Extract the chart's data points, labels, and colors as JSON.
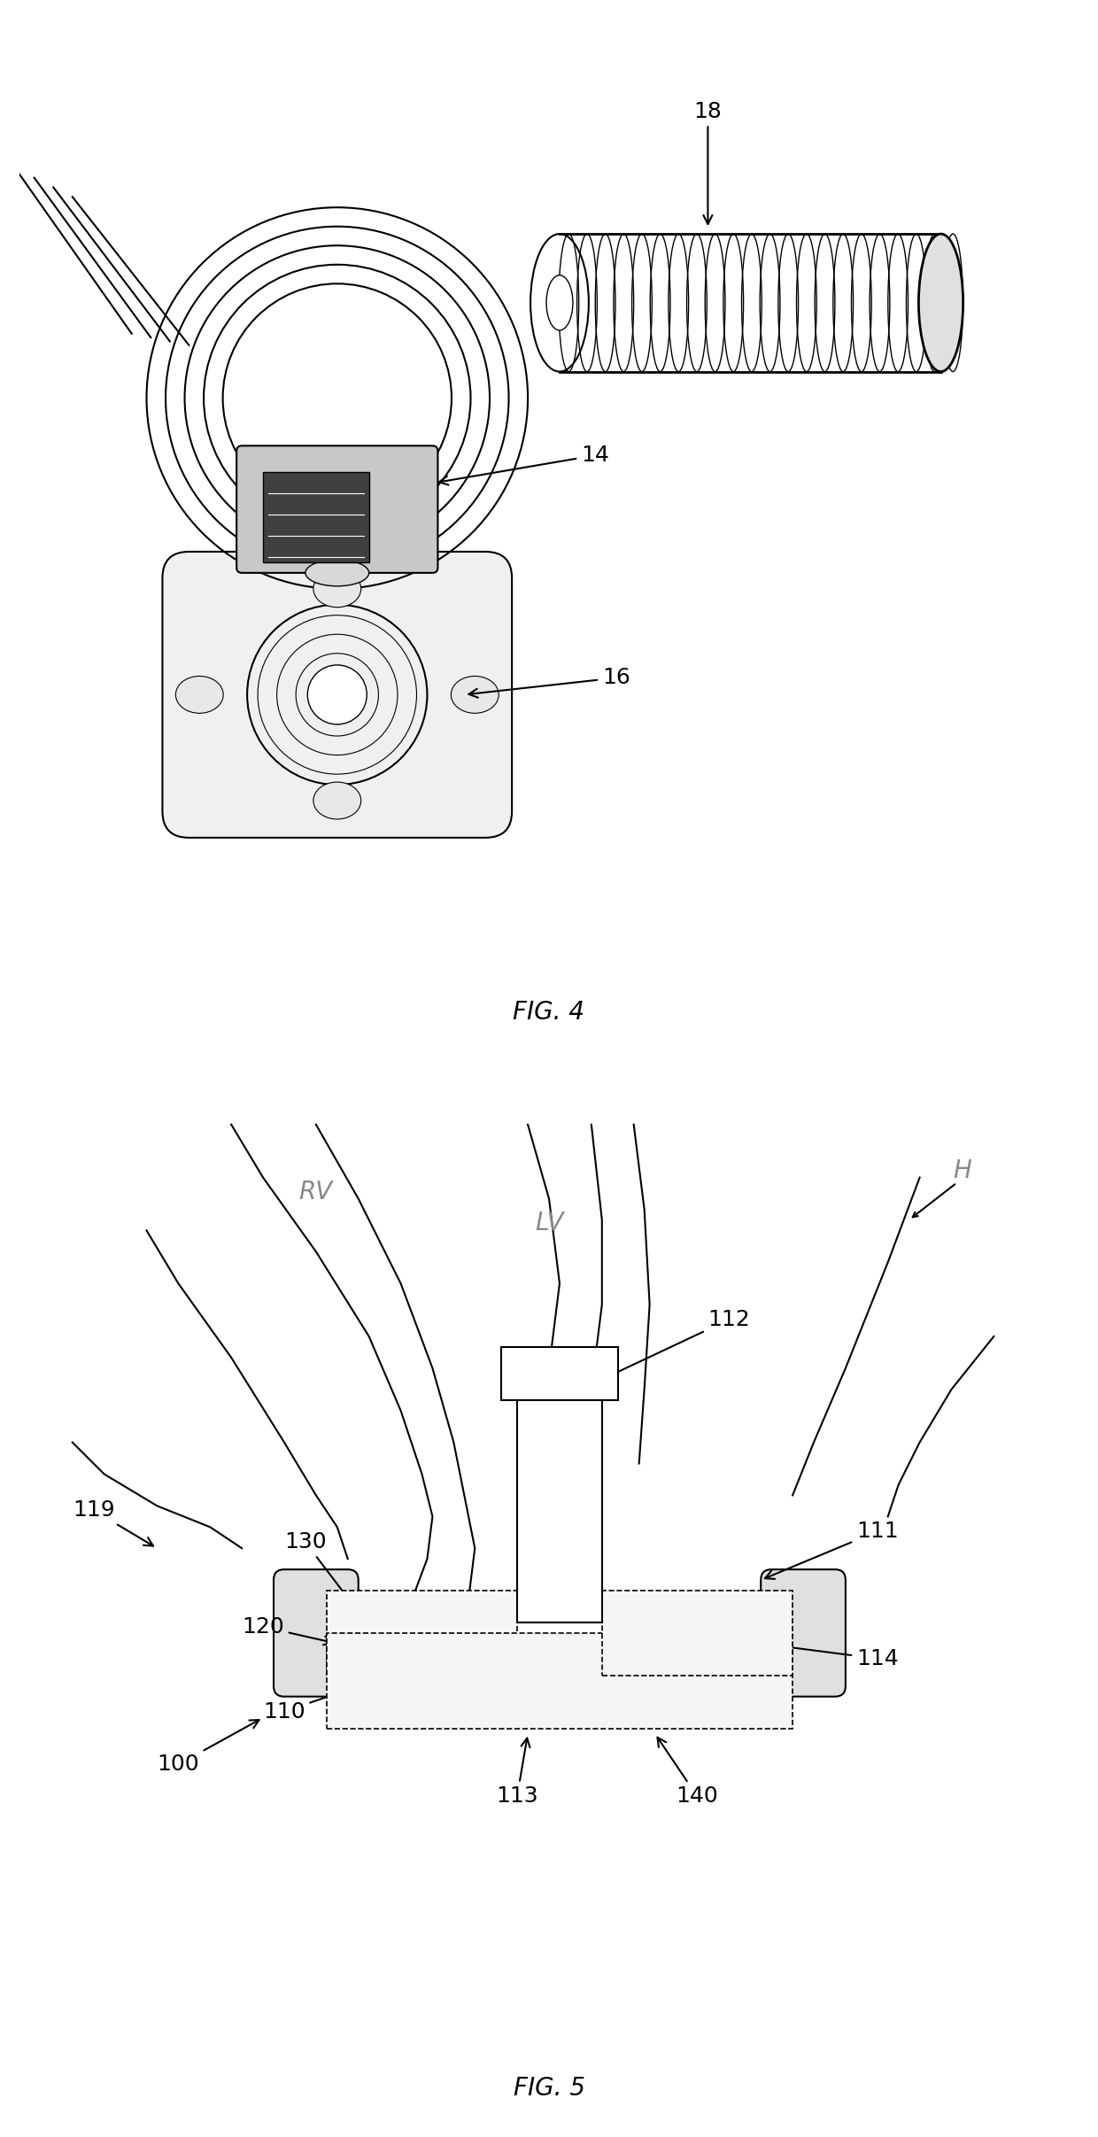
{
  "fig4_label": "FIG. 4",
  "fig5_label": "FIG. 5",
  "label_14": "14",
  "label_16": "16",
  "label_18": "18",
  "label_H": "H",
  "label_RV": "RV",
  "label_LV": "LV",
  "label_100": "100",
  "label_110": "110",
  "label_111": "111",
  "label_112": "112",
  "label_113": "113",
  "label_114": "114",
  "label_119": "119",
  "label_120": "120",
  "label_130": "130",
  "label_140": "140",
  "bg_color": "#ffffff",
  "line_color": "#000000",
  "gray_color": "#888888",
  "font_size_label": 18,
  "font_size_fig": 20
}
